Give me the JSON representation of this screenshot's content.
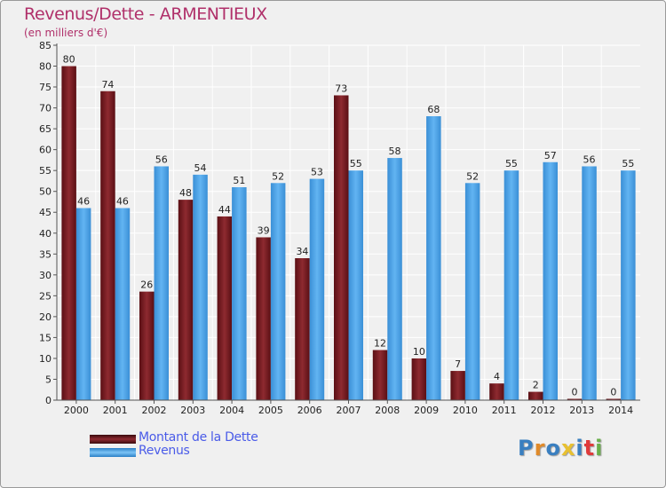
{
  "chart_data": {
    "type": "bar",
    "title": "Revenus/Dette - ARMENTIEUX",
    "subtitle": "(en milliers d'€)",
    "categories": [
      "2000",
      "2001",
      "2002",
      "2003",
      "2004",
      "2005",
      "2006",
      "2007",
      "2008",
      "2009",
      "2010",
      "2011",
      "2012",
      "2013",
      "2014"
    ],
    "series": [
      {
        "name": "Montant de la Dette",
        "values": [
          80,
          74,
          26,
          48,
          44,
          39,
          34,
          73,
          12,
          10,
          7,
          4,
          2,
          0,
          0
        ],
        "color": "#7a1c22"
      },
      {
        "name": "Revenus",
        "values": [
          46,
          46,
          56,
          54,
          51,
          52,
          53,
          55,
          58,
          68,
          52,
          55,
          57,
          56,
          55
        ],
        "color": "#4aa3e6"
      }
    ],
    "ylim": [
      0,
      85
    ],
    "yticks": [
      0,
      5,
      10,
      15,
      20,
      25,
      30,
      35,
      40,
      45,
      50,
      55,
      60,
      65,
      70,
      75,
      80,
      85
    ],
    "grid": true,
    "legend": "bottom-left"
  },
  "logo": {
    "text": "Proxiti",
    "colors": [
      "#3a7fc0",
      "#e08a2a",
      "#3a7fc0",
      "#e8c030",
      "#3a7fc0",
      "#e03a3a",
      "#6ab04c"
    ]
  }
}
